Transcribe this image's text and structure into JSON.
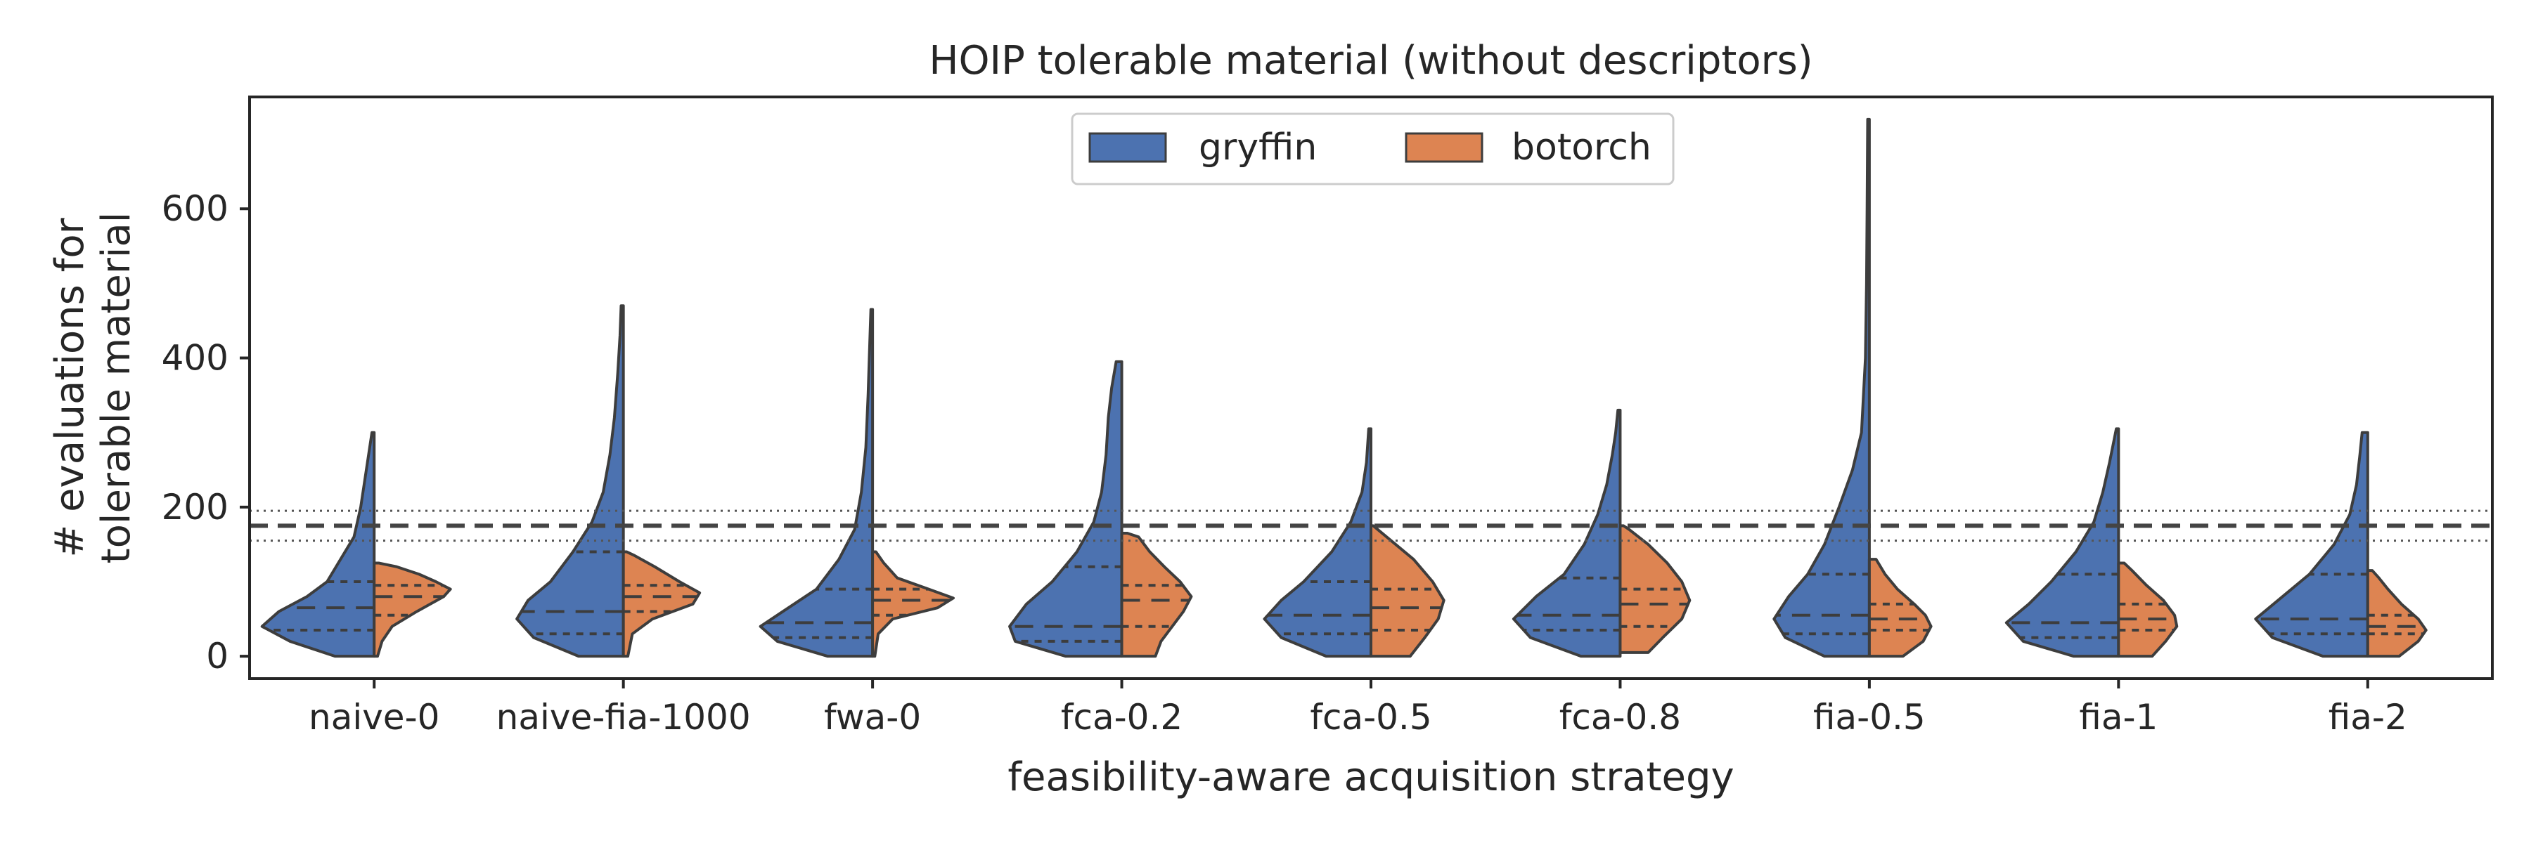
{
  "chart_data": {
    "type": "violin",
    "title": "HOIP tolerable material (without descriptors)",
    "xlabel": "feasibility-aware acquisition strategy",
    "ylabel": [
      "# evaluations for",
      "tolerable material"
    ],
    "ylim": [
      -30,
      750
    ],
    "yticks": [
      0,
      200,
      400,
      600
    ],
    "grid": false,
    "legend_position": "top-center",
    "categories": [
      "naive-0",
      "naive-fia-1000",
      "fwa-0",
      "fca-0.2",
      "fca-0.5",
      "fca-0.8",
      "fia-0.5",
      "fia-1",
      "fia-2"
    ],
    "reference_lines": {
      "mean": 175,
      "lower": 155,
      "upper": 195
    },
    "colors": {
      "gryffin": "#4c72b0",
      "botorch": "#dd8452",
      "edge": "#3d3d3d"
    },
    "series": [
      {
        "name": "gryffin",
        "color": "#4c72b0",
        "distributions": [
          {
            "min": 0,
            "max": 300,
            "q1": 35,
            "median": 65,
            "q3": 100,
            "profile": [
              [
                0,
                0.35
              ],
              [
                20,
                0.75
              ],
              [
                40,
                1.0
              ],
              [
                60,
                0.85
              ],
              [
                80,
                0.6
              ],
              [
                100,
                0.42
              ],
              [
                130,
                0.3
              ],
              [
                160,
                0.18
              ],
              [
                200,
                0.12
              ],
              [
                240,
                0.08
              ],
              [
                270,
                0.05
              ],
              [
                300,
                0.02
              ]
            ]
          },
          {
            "min": 0,
            "max": 470,
            "q1": 30,
            "median": 60,
            "q3": 140,
            "profile": [
              [
                0,
                0.4
              ],
              [
                25,
                0.8
              ],
              [
                50,
                0.95
              ],
              [
                75,
                0.85
              ],
              [
                100,
                0.65
              ],
              [
                140,
                0.45
              ],
              [
                180,
                0.28
              ],
              [
                220,
                0.18
              ],
              [
                270,
                0.12
              ],
              [
                320,
                0.08
              ],
              [
                380,
                0.05
              ],
              [
                430,
                0.03
              ],
              [
                470,
                0.02
              ]
            ]
          },
          {
            "min": 0,
            "max": 465,
            "q1": 25,
            "median": 45,
            "q3": 90,
            "profile": [
              [
                0,
                0.4
              ],
              [
                20,
                0.85
              ],
              [
                40,
                1.0
              ],
              [
                60,
                0.8
              ],
              [
                90,
                0.5
              ],
              [
                130,
                0.3
              ],
              [
                170,
                0.16
              ],
              [
                220,
                0.1
              ],
              [
                280,
                0.06
              ],
              [
                350,
                0.04
              ],
              [
                420,
                0.025
              ],
              [
                465,
                0.015
              ]
            ]
          },
          {
            "min": 0,
            "max": 395,
            "q1": 20,
            "median": 40,
            "q3": 120,
            "profile": [
              [
                0,
                0.5
              ],
              [
                20,
                0.95
              ],
              [
                40,
                1.0
              ],
              [
                70,
                0.85
              ],
              [
                100,
                0.62
              ],
              [
                140,
                0.4
              ],
              [
                180,
                0.25
              ],
              [
                220,
                0.18
              ],
              [
                270,
                0.14
              ],
              [
                320,
                0.12
              ],
              [
                360,
                0.09
              ],
              [
                395,
                0.05
              ]
            ]
          },
          {
            "min": 0,
            "max": 305,
            "q1": 30,
            "median": 55,
            "q3": 100,
            "profile": [
              [
                0,
                0.4
              ],
              [
                25,
                0.8
              ],
              [
                50,
                0.95
              ],
              [
                75,
                0.8
              ],
              [
                100,
                0.6
              ],
              [
                140,
                0.35
              ],
              [
                180,
                0.18
              ],
              [
                220,
                0.08
              ],
              [
                260,
                0.04
              ],
              [
                305,
                0.02
              ]
            ]
          },
          {
            "min": 0,
            "max": 330,
            "q1": 35,
            "median": 55,
            "q3": 105,
            "profile": [
              [
                0,
                0.35
              ],
              [
                25,
                0.8
              ],
              [
                50,
                0.95
              ],
              [
                80,
                0.75
              ],
              [
                110,
                0.5
              ],
              [
                150,
                0.32
              ],
              [
                190,
                0.2
              ],
              [
                230,
                0.12
              ],
              [
                270,
                0.07
              ],
              [
                300,
                0.04
              ],
              [
                330,
                0.02
              ]
            ]
          },
          {
            "min": 0,
            "max": 720,
            "q1": 30,
            "median": 55,
            "q3": 110,
            "profile": [
              [
                0,
                0.4
              ],
              [
                25,
                0.75
              ],
              [
                50,
                0.85
              ],
              [
                80,
                0.72
              ],
              [
                110,
                0.55
              ],
              [
                150,
                0.4
              ],
              [
                200,
                0.27
              ],
              [
                250,
                0.15
              ],
              [
                300,
                0.07
              ],
              [
                400,
                0.035
              ],
              [
                500,
                0.025
              ],
              [
                600,
                0.02
              ],
              [
                720,
                0.015
              ]
            ]
          },
          {
            "min": 0,
            "max": 305,
            "q1": 25,
            "median": 45,
            "q3": 110,
            "profile": [
              [
                0,
                0.4
              ],
              [
                20,
                0.85
              ],
              [
                45,
                1.0
              ],
              [
                70,
                0.8
              ],
              [
                100,
                0.6
              ],
              [
                140,
                0.38
              ],
              [
                180,
                0.22
              ],
              [
                220,
                0.14
              ],
              [
                260,
                0.08
              ],
              [
                290,
                0.04
              ],
              [
                305,
                0.02
              ]
            ]
          },
          {
            "min": 0,
            "max": 300,
            "q1": 30,
            "median": 50,
            "q3": 110,
            "profile": [
              [
                0,
                0.4
              ],
              [
                25,
                0.85
              ],
              [
                50,
                1.0
              ],
              [
                75,
                0.8
              ],
              [
                110,
                0.52
              ],
              [
                150,
                0.3
              ],
              [
                190,
                0.16
              ],
              [
                230,
                0.1
              ],
              [
                270,
                0.07
              ],
              [
                300,
                0.05
              ]
            ]
          }
        ]
      },
      {
        "name": "botorch",
        "color": "#dd8452",
        "distributions": [
          {
            "min": 0,
            "max": 125,
            "q1": 55,
            "median": 80,
            "q3": 95,
            "profile": [
              [
                0,
                0.03
              ],
              [
                20,
                0.07
              ],
              [
                40,
                0.16
              ],
              [
                60,
                0.38
              ],
              [
                80,
                0.62
              ],
              [
                90,
                0.68
              ],
              [
                100,
                0.55
              ],
              [
                110,
                0.4
              ],
              [
                120,
                0.2
              ],
              [
                125,
                0.04
              ]
            ]
          },
          {
            "min": 0,
            "max": 140,
            "q1": 60,
            "median": 80,
            "q3": 95,
            "profile": [
              [
                0,
                0.04
              ],
              [
                30,
                0.08
              ],
              [
                50,
                0.26
              ],
              [
                70,
                0.62
              ],
              [
                85,
                0.68
              ],
              [
                100,
                0.5
              ],
              [
                120,
                0.28
              ],
              [
                135,
                0.1
              ],
              [
                140,
                0.03
              ]
            ]
          },
          {
            "min": 0,
            "max": 140,
            "q1": 55,
            "median": 75,
            "q3": 90,
            "profile": [
              [
                0,
                0.02
              ],
              [
                30,
                0.05
              ],
              [
                50,
                0.18
              ],
              [
                65,
                0.58
              ],
              [
                78,
                0.72
              ],
              [
                90,
                0.5
              ],
              [
                105,
                0.22
              ],
              [
                125,
                0.1
              ],
              [
                140,
                0.03
              ]
            ]
          },
          {
            "min": 0,
            "max": 165,
            "q1": 40,
            "median": 75,
            "q3": 95,
            "profile": [
              [
                0,
                0.3
              ],
              [
                20,
                0.35
              ],
              [
                40,
                0.45
              ],
              [
                60,
                0.55
              ],
              [
                80,
                0.62
              ],
              [
                100,
                0.52
              ],
              [
                120,
                0.38
              ],
              [
                140,
                0.25
              ],
              [
                160,
                0.15
              ],
              [
                165,
                0.05
              ]
            ]
          },
          {
            "min": 0,
            "max": 175,
            "q1": 35,
            "median": 65,
            "q3": 90,
            "profile": [
              [
                0,
                0.35
              ],
              [
                25,
                0.48
              ],
              [
                50,
                0.6
              ],
              [
                75,
                0.65
              ],
              [
                100,
                0.55
              ],
              [
                130,
                0.38
              ],
              [
                150,
                0.22
              ],
              [
                170,
                0.06
              ],
              [
                175,
                0.02
              ]
            ]
          },
          {
            "min": 5,
            "max": 175,
            "q1": 40,
            "median": 70,
            "q3": 90,
            "profile": [
              [
                5,
                0.25
              ],
              [
                25,
                0.38
              ],
              [
                50,
                0.55
              ],
              [
                75,
                0.62
              ],
              [
                100,
                0.55
              ],
              [
                125,
                0.42
              ],
              [
                150,
                0.25
              ],
              [
                170,
                0.08
              ],
              [
                175,
                0.03
              ]
            ]
          },
          {
            "min": 0,
            "max": 130,
            "q1": 35,
            "median": 50,
            "q3": 70,
            "profile": [
              [
                0,
                0.3
              ],
              [
                20,
                0.48
              ],
              [
                40,
                0.55
              ],
              [
                55,
                0.5
              ],
              [
                70,
                0.4
              ],
              [
                90,
                0.25
              ],
              [
                110,
                0.14
              ],
              [
                130,
                0.06
              ]
            ]
          },
          {
            "min": 0,
            "max": 125,
            "q1": 35,
            "median": 50,
            "q3": 70,
            "profile": [
              [
                0,
                0.3
              ],
              [
                20,
                0.42
              ],
              [
                40,
                0.52
              ],
              [
                55,
                0.5
              ],
              [
                75,
                0.4
              ],
              [
                95,
                0.25
              ],
              [
                115,
                0.12
              ],
              [
                125,
                0.05
              ]
            ]
          },
          {
            "min": 0,
            "max": 115,
            "q1": 30,
            "median": 40,
            "q3": 55,
            "profile": [
              [
                0,
                0.28
              ],
              [
                20,
                0.45
              ],
              [
                35,
                0.52
              ],
              [
                50,
                0.45
              ],
              [
                70,
                0.3
              ],
              [
                90,
                0.18
              ],
              [
                105,
                0.1
              ],
              [
                115,
                0.04
              ]
            ]
          }
        ]
      }
    ]
  }
}
